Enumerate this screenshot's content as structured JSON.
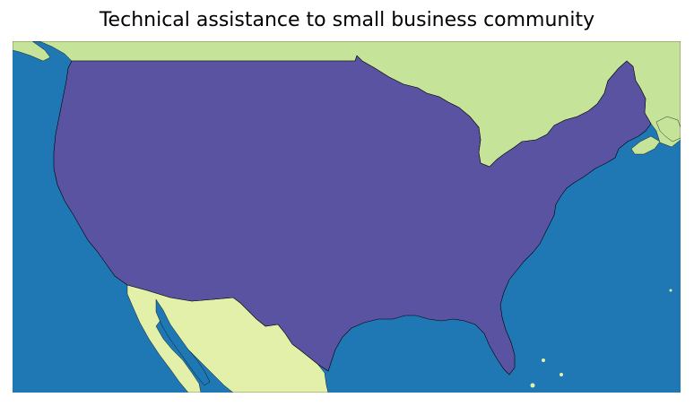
{
  "map": {
    "title": "Technical assistance to small business community",
    "colors": {
      "ocean": "#1f78b4",
      "usa": "#5a53a1",
      "canada": "#c6e39a",
      "mexico": "#e2f0a9",
      "border": "#000000"
    },
    "regions": [
      "Canada",
      "United States",
      "Mexico"
    ]
  }
}
